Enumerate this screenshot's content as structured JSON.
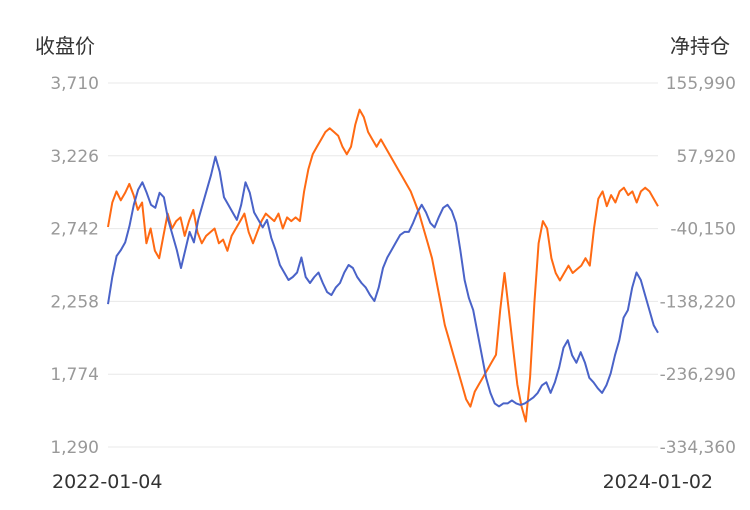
{
  "chart_data": {
    "type": "line",
    "left_axis_title": "收盘价",
    "right_axis_title": "净持仓",
    "left_ticks": [
      "3,710",
      "3,226",
      "2,742",
      "2,258",
      "1,774",
      "1,290"
    ],
    "right_ticks": [
      "155,990",
      "57,920",
      "-40,150",
      "-138,220",
      "-236,290",
      "-334,360"
    ],
    "ylim_left": [
      1290,
      3710
    ],
    "ylim_right": [
      -334360,
      155990
    ],
    "x_labels": [
      "2022-01-04",
      "2024-01-02"
    ],
    "grid": true,
    "colors": {
      "close": "#4a63c8",
      "position": "#ff6a13",
      "grid": "#e8e8e8"
    },
    "series": [
      {
        "key": "close",
        "axis": "left",
        "values": [
          2240,
          2420,
          2560,
          2600,
          2650,
          2760,
          2900,
          3000,
          3050,
          2980,
          2900,
          2880,
          2980,
          2950,
          2800,
          2700,
          2600,
          2480,
          2600,
          2720,
          2650,
          2800,
          2900,
          3000,
          3100,
          3220,
          3120,
          2950,
          2900,
          2850,
          2800,
          2900,
          3050,
          2980,
          2850,
          2800,
          2750,
          2800,
          2680,
          2600,
          2500,
          2450,
          2400,
          2420,
          2450,
          2550,
          2420,
          2380,
          2420,
          2450,
          2380,
          2320,
          2300,
          2350,
          2380,
          2450,
          2500,
          2480,
          2420,
          2380,
          2350,
          2300,
          2260,
          2350,
          2480,
          2550,
          2600,
          2650,
          2700,
          2720,
          2720,
          2780,
          2850,
          2900,
          2850,
          2780,
          2750,
          2820,
          2880,
          2900,
          2860,
          2780,
          2600,
          2400,
          2280,
          2200,
          2050,
          1900,
          1750,
          1650,
          1580,
          1560,
          1580,
          1580,
          1600,
          1580,
          1570,
          1580,
          1600,
          1620,
          1650,
          1700,
          1720,
          1650,
          1720,
          1820,
          1950,
          2000,
          1900,
          1850,
          1920,
          1850,
          1750,
          1720,
          1680,
          1650,
          1700,
          1780,
          1900,
          2000,
          2150,
          2200,
          2350,
          2450,
          2400,
          2300,
          2200,
          2100,
          2050
        ]
      },
      {
        "key": "position",
        "axis": "right",
        "values": [
          -38000,
          -5000,
          10000,
          -2000,
          8000,
          20000,
          5000,
          -15000,
          -5000,
          -60000,
          -40000,
          -70000,
          -80000,
          -50000,
          -20000,
          -40000,
          -30000,
          -25000,
          -50000,
          -30000,
          -15000,
          -45000,
          -60000,
          -50000,
          -45000,
          -40000,
          -60000,
          -55000,
          -70000,
          -50000,
          -40000,
          -30000,
          -20000,
          -45000,
          -60000,
          -45000,
          -30000,
          -20000,
          -25000,
          -30000,
          -20000,
          -40000,
          -25000,
          -30000,
          -25000,
          -30000,
          10000,
          40000,
          60000,
          70000,
          80000,
          90000,
          95000,
          90000,
          85000,
          70000,
          60000,
          70000,
          100000,
          120000,
          110000,
          90000,
          80000,
          70000,
          80000,
          70000,
          60000,
          50000,
          40000,
          30000,
          20000,
          10000,
          -5000,
          -20000,
          -40000,
          -60000,
          -80000,
          -110000,
          -140000,
          -170000,
          -190000,
          -210000,
          -230000,
          -250000,
          -270000,
          -280000,
          -260000,
          -250000,
          -240000,
          -230000,
          -220000,
          -210000,
          -150000,
          -100000,
          -150000,
          -200000,
          -250000,
          -280000,
          -300000,
          -240000,
          -140000,
          -60000,
          -30000,
          -40000,
          -80000,
          -100000,
          -110000,
          -100000,
          -90000,
          -100000,
          -95000,
          -90000,
          -80000,
          -90000,
          -40000,
          0,
          10000,
          -10000,
          5000,
          -5000,
          10000,
          15000,
          5000,
          10000,
          -5000,
          10000,
          15000,
          10000,
          0,
          -10000
        ]
      }
    ]
  }
}
